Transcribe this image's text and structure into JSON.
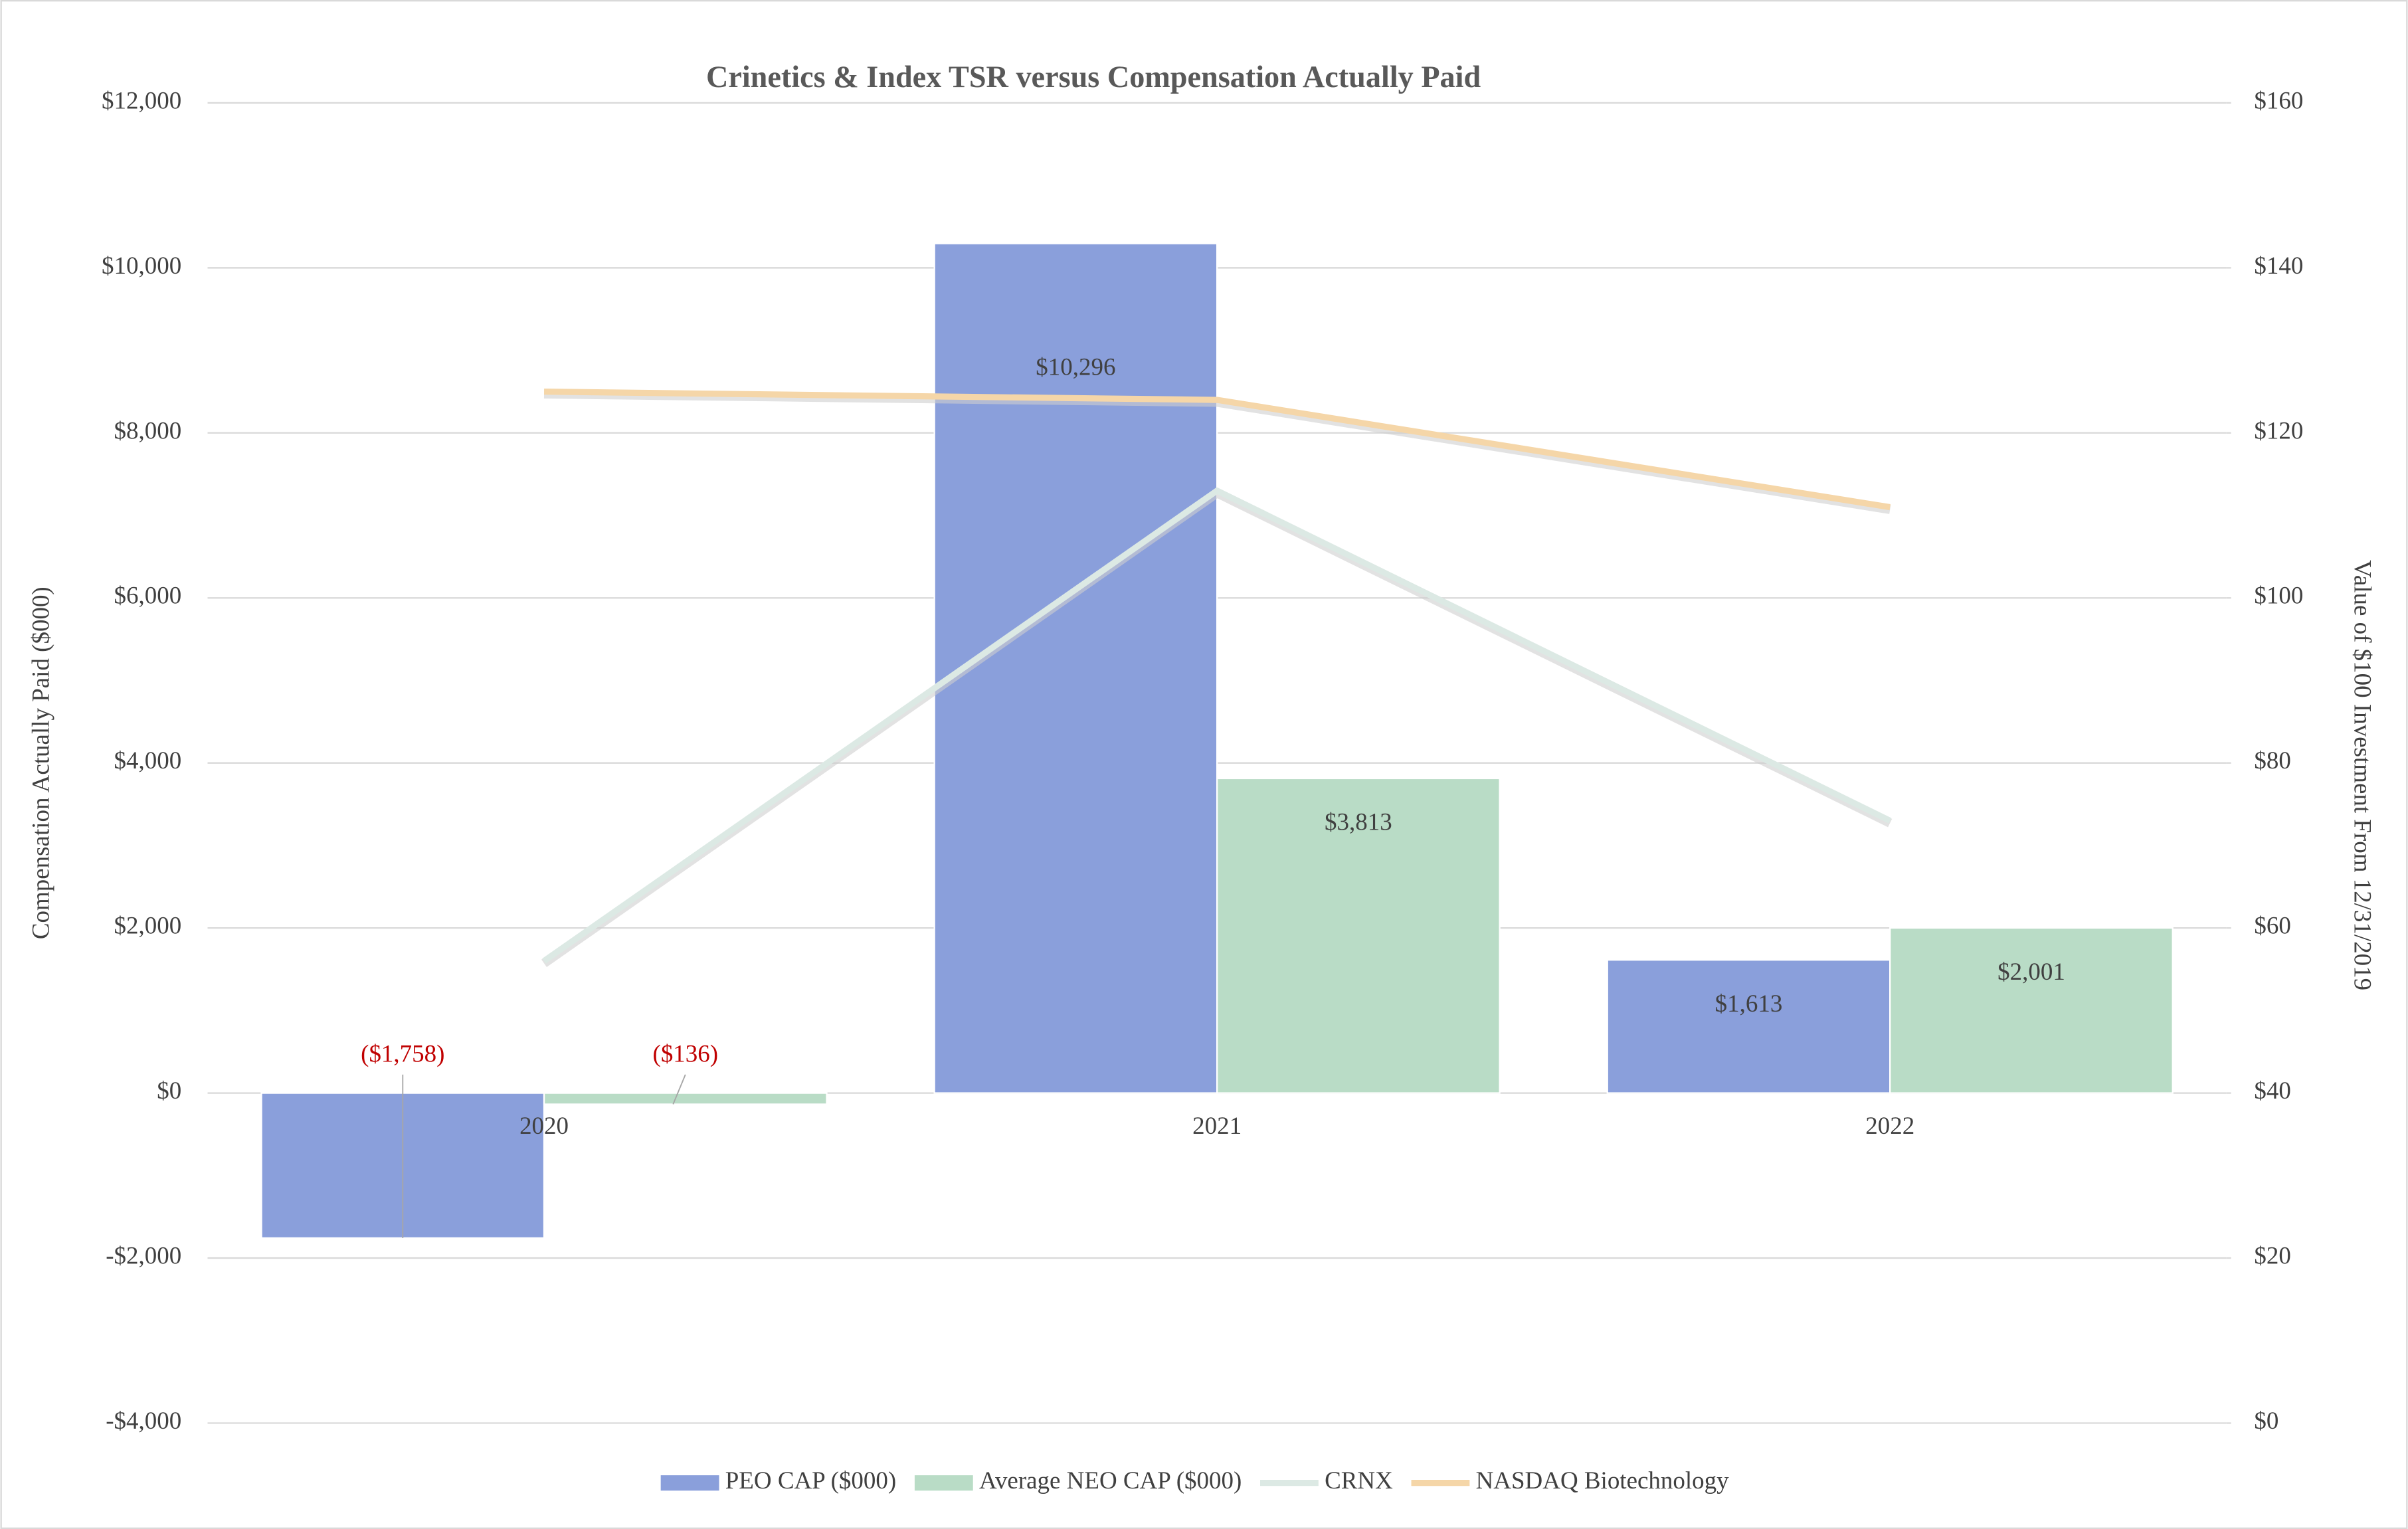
{
  "chart_data": {
    "type": "bar",
    "title": "Crinetics & Index TSR versus Compensation Actually Paid",
    "y_label": "Compensation Actually Paid ($000)",
    "y2_label": "Value of $100 Investment From 12/31/2019",
    "categories": [
      "2020",
      "2021",
      "2022"
    ],
    "series": [
      {
        "name": "PEO CAP ($000)",
        "type": "bar",
        "color": "#8a9fdb",
        "values": [
          -1758,
          10296,
          1613
        ],
        "value_labels": [
          "($1,758)",
          "$10,296",
          "$1,613"
        ]
      },
      {
        "name": "Average NEO CAP ($000)",
        "type": "bar",
        "color": "#b9dcc6",
        "values": [
          -136,
          3813,
          2001
        ],
        "value_labels": [
          "($136)",
          "$3,813",
          "$2,001"
        ]
      },
      {
        "name": "CRNX",
        "type": "line",
        "axis": "y2",
        "color": "#dce9e4",
        "values": [
          56,
          113,
          73
        ]
      },
      {
        "name": "NASDAQ Biotechnology",
        "type": "line",
        "axis": "y2",
        "color": "#f5d6a8",
        "values": [
          125,
          124,
          111
        ]
      }
    ],
    "ylim": [
      -4000,
      12000
    ],
    "yticks": [
      {
        "value": -4000,
        "label": "-$4,000"
      },
      {
        "value": -2000,
        "label": "-$2,000"
      },
      {
        "value": 0,
        "label": "$0"
      },
      {
        "value": 2000,
        "label": "$2,000"
      },
      {
        "value": 4000,
        "label": "$4,000"
      },
      {
        "value": 6000,
        "label": "$6,000"
      },
      {
        "value": 8000,
        "label": "$8,000"
      },
      {
        "value": 10000,
        "label": "$10,000"
      },
      {
        "value": 12000,
        "label": "$12,000"
      }
    ],
    "y2lim": [
      0,
      160
    ],
    "y2ticks": [
      {
        "value": 0,
        "label": "$0"
      },
      {
        "value": 20,
        "label": "$20"
      },
      {
        "value": 40,
        "label": "$40"
      },
      {
        "value": 60,
        "label": "$60"
      },
      {
        "value": 80,
        "label": "$80"
      },
      {
        "value": 100,
        "label": "$100"
      },
      {
        "value": 120,
        "label": "$120"
      },
      {
        "value": 140,
        "label": "$140"
      },
      {
        "value": 160,
        "label": "$160"
      }
    ],
    "grid": true,
    "legend": "bottom",
    "negative_label_color": "#c00000"
  }
}
